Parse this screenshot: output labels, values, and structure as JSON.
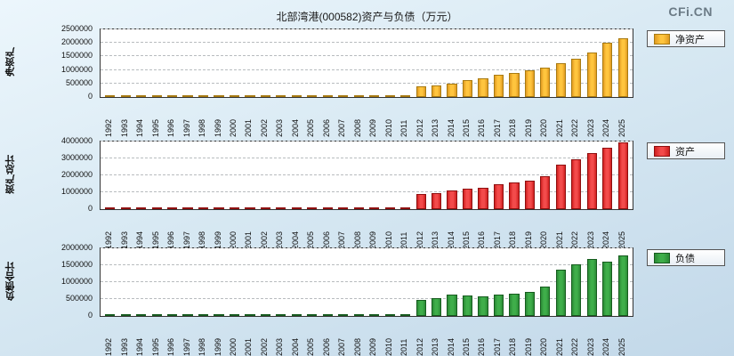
{
  "title": "北部湾港(000582)资产与负债（万元）",
  "watermark": "CFi.CN",
  "chart_data": [
    {
      "type": "bar",
      "ylabel": "净资产",
      "legend": "净资产",
      "colors": {
        "fill": "#ffc53e",
        "shade": "#e09a20",
        "edge": "#a87b12"
      },
      "ylim": [
        0,
        2500000
      ],
      "yticks": [
        0,
        500000,
        1000000,
        1500000,
        2000000,
        2500000
      ],
      "categories": [
        "1992",
        "1993",
        "1994",
        "1995",
        "1996",
        "1997",
        "1998",
        "1999",
        "2000",
        "2001",
        "2002",
        "2003",
        "2004",
        "2005",
        "2006",
        "2007",
        "2008",
        "2009",
        "2010",
        "2011",
        "2012",
        "2013",
        "2014",
        "2015",
        "2016",
        "2017",
        "2018",
        "2019",
        "2020",
        "2021",
        "2022",
        "2023",
        "2024",
        "2025"
      ],
      "values": [
        9000,
        11000,
        12000,
        13000,
        15000,
        17000,
        22000,
        30000,
        33000,
        35000,
        30000,
        32000,
        34000,
        36000,
        24000,
        27000,
        29000,
        31000,
        33000,
        36000,
        400000,
        430000,
        480000,
        620000,
        700000,
        810000,
        900000,
        990000,
        1080000,
        1260000,
        1430000,
        1630000,
        2020000,
        2180000
      ]
    },
    {
      "type": "bar",
      "ylabel": "资产总计",
      "legend": "资产",
      "colors": {
        "fill": "#f34b4b",
        "shade": "#cf1f1f",
        "edge": "#8f0f0f"
      },
      "ylim": [
        0,
        4000000
      ],
      "yticks": [
        0,
        1000000,
        2000000,
        3000000,
        4000000
      ],
      "categories": [
        "1992",
        "1993",
        "1994",
        "1995",
        "1996",
        "1997",
        "1998",
        "1999",
        "2000",
        "2001",
        "2002",
        "2003",
        "2004",
        "2005",
        "2006",
        "2007",
        "2008",
        "2009",
        "2010",
        "2011",
        "2012",
        "2013",
        "2014",
        "2015",
        "2016",
        "2017",
        "2018",
        "2019",
        "2020",
        "2021",
        "2022",
        "2023",
        "2024",
        "2025"
      ],
      "values": [
        15000,
        18000,
        20000,
        22000,
        25000,
        28000,
        35000,
        45000,
        50000,
        52000,
        50000,
        52000,
        55000,
        58000,
        50000,
        55000,
        60000,
        65000,
        70000,
        80000,
        880000,
        960000,
        1100000,
        1220000,
        1270000,
        1450000,
        1560000,
        1700000,
        1950000,
        2620000,
        2950000,
        3300000,
        3620000,
        3950000
      ]
    },
    {
      "type": "bar",
      "ylabel": "负债合计",
      "legend": "负债",
      "colors": {
        "fill": "#3fae4a",
        "shade": "#2a8a35",
        "edge": "#175c1f"
      },
      "ylim": [
        0,
        2000000
      ],
      "yticks": [
        0,
        500000,
        1000000,
        1500000,
        2000000
      ],
      "categories": [
        "1992",
        "1993",
        "1994",
        "1995",
        "1996",
        "1997",
        "1998",
        "1999",
        "2000",
        "2001",
        "2002",
        "2003",
        "2004",
        "2005",
        "2006",
        "2007",
        "2008",
        "2009",
        "2010",
        "2011",
        "2012",
        "2013",
        "2014",
        "2015",
        "2016",
        "2017",
        "2018",
        "2019",
        "2020",
        "2021",
        "2022",
        "2023",
        "2024",
        "2025"
      ],
      "values": [
        6000,
        7000,
        8000,
        9000,
        10000,
        11000,
        13000,
        15000,
        17000,
        17000,
        20000,
        20000,
        21000,
        22000,
        26000,
        28000,
        31000,
        34000,
        37000,
        44000,
        470000,
        530000,
        620000,
        600000,
        570000,
        640000,
        660000,
        710000,
        870000,
        1360000,
        1520000,
        1690000,
        1600000,
        1780000
      ]
    }
  ]
}
